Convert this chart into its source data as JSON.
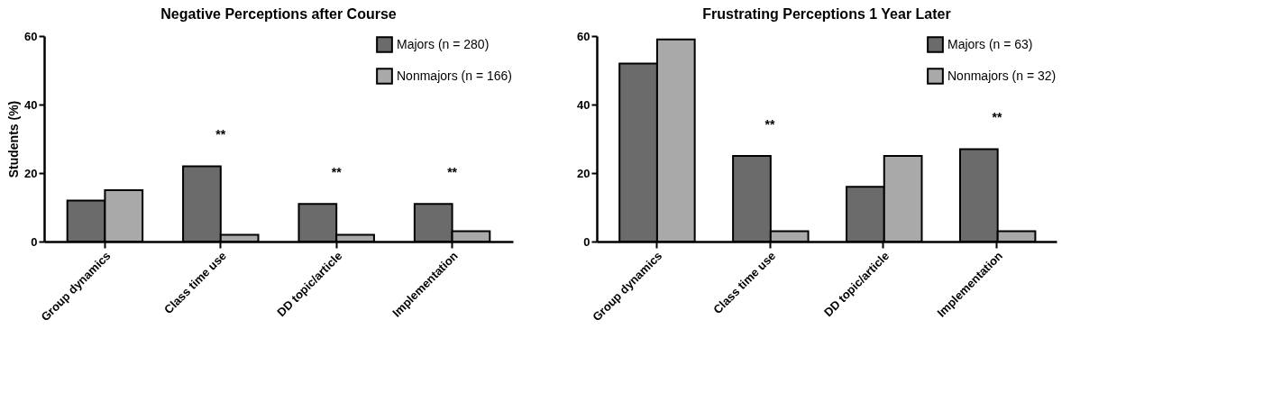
{
  "chart_data": [
    {
      "type": "bar",
      "title": "Negative Perceptions after Course",
      "ylabel": "Students (%)",
      "categories": [
        "Group dynamics",
        "Class time use",
        "DD topic/article",
        "Implementation"
      ],
      "series": [
        {
          "name": "Majors (n = 280)",
          "color": "#6b6b6b",
          "values": [
            12,
            22,
            11,
            11
          ]
        },
        {
          "name": "Nonmajors (n = 166)",
          "color": "#a9a9a9",
          "values": [
            15,
            2,
            2,
            3
          ]
        }
      ],
      "ylim": [
        0,
        60
      ],
      "yticks": [
        0,
        20,
        40,
        60
      ],
      "grid": false,
      "legend": "top right",
      "annotations": [
        {
          "text": "**",
          "x": "Class time use",
          "y": 22
        },
        {
          "text": "**",
          "x": "DD topic/article",
          "y": 11
        },
        {
          "text": "**",
          "x": "Implementation",
          "y": 11
        }
      ]
    },
    {
      "type": "bar",
      "title": "Frustrating Perceptions 1 Year Later",
      "categories": [
        "Group dynamics",
        "Class time use",
        "DD topic/article",
        "Implementation"
      ],
      "series": [
        {
          "name": "Majors (n = 63)",
          "color": "#6b6b6b",
          "values": [
            52,
            25,
            16,
            27
          ]
        },
        {
          "name": "Nonmajors (n = 32)",
          "color": "#a9a9a9",
          "values": [
            59,
            3,
            25,
            3
          ]
        }
      ],
      "ylim": [
        0,
        60
      ],
      "yticks": [
        0,
        20,
        40,
        60
      ],
      "grid": false,
      "legend": "top right",
      "annotations": [
        {
          "text": "**",
          "x": "Class time use",
          "y": 25
        },
        {
          "text": "**",
          "x": "Implementation",
          "y": 27
        }
      ]
    }
  ]
}
